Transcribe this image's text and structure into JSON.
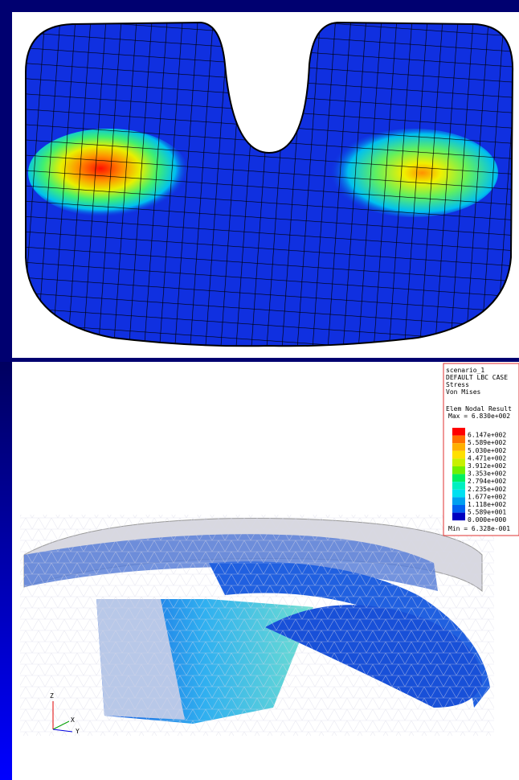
{
  "legend": {
    "header": [
      "scenario_1",
      "DEFAULT LBC CASE",
      "Stress",
      "Von Mises"
    ],
    "result_type": "Elem Nodal Result",
    "max": "Max = 6.830e+002",
    "min": "Min = 6.328e-001",
    "entries": [
      {
        "label": "6.147e+002",
        "color": "#ff0000"
      },
      {
        "label": "5.589e+002",
        "color": "#ff7000"
      },
      {
        "label": "5.030e+002",
        "color": "#ffb000"
      },
      {
        "label": "4.471e+002",
        "color": "#ffe000"
      },
      {
        "label": "3.912e+002",
        "color": "#c8f000"
      },
      {
        "label": "3.353e+002",
        "color": "#70f000"
      },
      {
        "label": "2.794e+002",
        "color": "#00f060"
      },
      {
        "label": "2.235e+002",
        "color": "#00f0c0"
      },
      {
        "label": "1.677e+002",
        "color": "#00e0f0"
      },
      {
        "label": "1.118e+002",
        "color": "#00a0f0"
      },
      {
        "label": "5.589e+001",
        "color": "#0060f0"
      },
      {
        "label": "0.000e+000",
        "color": "#0000c0"
      }
    ]
  },
  "axes": {
    "z": "Z",
    "x": "X",
    "y": "Y"
  }
}
